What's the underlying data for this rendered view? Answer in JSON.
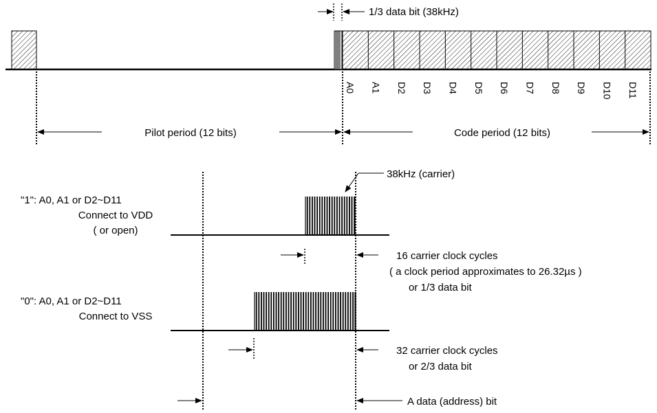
{
  "top_label": "1/3 data bit (38kHz)",
  "bit_labels": [
    "A0",
    "A1",
    "D2",
    "D3",
    "D4",
    "D5",
    "D6",
    "D7",
    "D8",
    "D9",
    "D10",
    "D11"
  ],
  "pilot_label": "Pilot period (12 bits)",
  "code_label": "Code period (12 bits)",
  "carrier_label": "38kHz (carrier)",
  "one_block": {
    "line1": "\"1\":  A0, A1 or D2~D11",
    "line2": "Connect to VDD",
    "line3": "( or open)"
  },
  "zero_block": {
    "line1": "\"0\":  A0, A1 or D2~D11",
    "line2": "Connect to VSS"
  },
  "sixteen_cycles": {
    "line1": "16 carrier clock cycles",
    "line2": "( a clock period approximates to 26.32µs )",
    "line3": "or  1/3 data bit"
  },
  "thirtytwo_cycles": {
    "line1": "32 carrier clock cycles",
    "line2": "or  2/3 data bit"
  },
  "data_bit_label": "A data (address) bit"
}
